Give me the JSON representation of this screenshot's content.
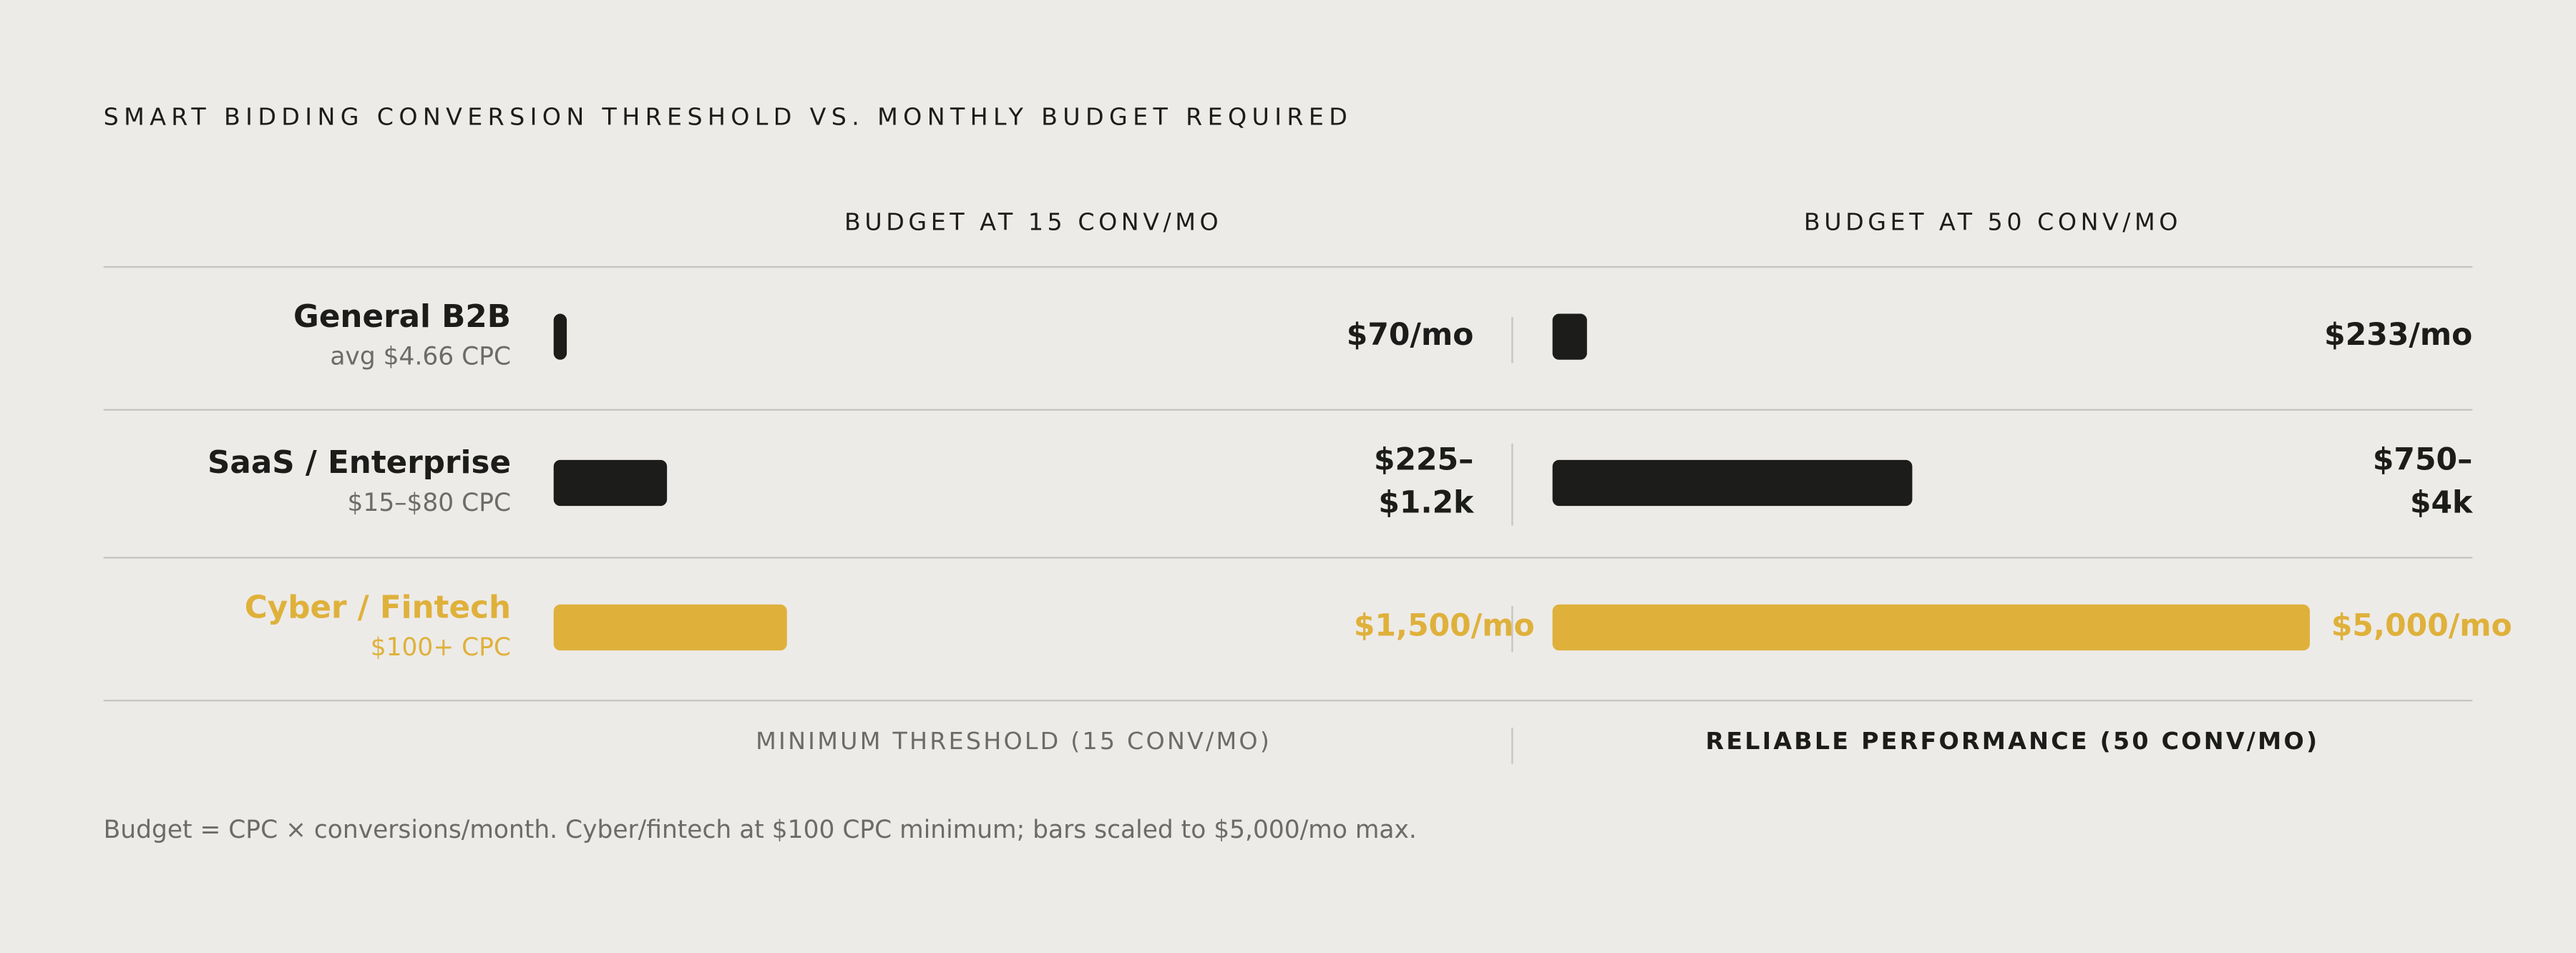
{
  "colors": {
    "background": "#edebe8",
    "dark_bar": "#1c1c1a",
    "accent": "#dfb13b",
    "muted_text": "#6d6b68",
    "rule": "#c6c4c1"
  },
  "header": {
    "title": "SMART BIDDING CONVERSION THRESHOLD VS. MONTHLY BUDGET REQUIRED",
    "col1": "BUDGET AT 15 CONV/MO",
    "col2": "BUDGET AT 50 CONV/MO"
  },
  "footer": {
    "col1": "MINIMUM THRESHOLD (15 CONV/MO)",
    "col2": "RELIABLE PERFORMANCE (50 CONV/MO)",
    "note": "Budget = CPC × conversions/month. Cyber/fintech at $100 CPC minimum; bars scaled to $5,000/mo max."
  },
  "chart_data": {
    "type": "bar",
    "orientation": "horizontal",
    "max_value": 5000,
    "categories": [
      "General B2B",
      "SaaS / Enterprise",
      "Cyber / Fintech"
    ],
    "rows": [
      {
        "name": "General B2B",
        "sub": "avg $4.66 CPC",
        "highlight": false,
        "v15": 70,
        "v50": 233,
        "label15": "$70/mo",
        "label50": "$233/mo"
      },
      {
        "name": "SaaS / Enterprise",
        "sub": "$15–$80 CPC",
        "highlight": false,
        "v15": 725,
        "v50": 2375,
        "label15": "$225–\n$1.2k",
        "label50": "$750–\n$4k"
      },
      {
        "name": "Cyber / Fintech",
        "sub": "$100+ CPC",
        "highlight": true,
        "v15": 1500,
        "v50": 5000,
        "label15": "$1,500/mo",
        "label50": "$5,000/mo"
      }
    ],
    "series": [
      {
        "name": "BUDGET AT 15 CONV/MO",
        "values": [
          70,
          725,
          1500
        ]
      },
      {
        "name": "BUDGET AT 50 CONV/MO",
        "values": [
          233,
          2375,
          5000
        ]
      }
    ]
  }
}
